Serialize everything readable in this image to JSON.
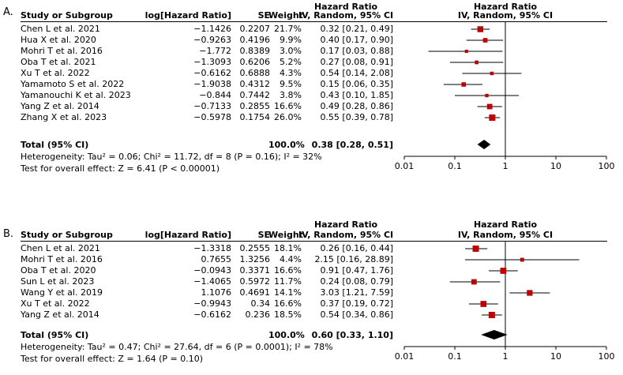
{
  "chart_data": [
    {
      "type": "forest",
      "panel_label": "A.",
      "headers": {
        "study": "Study or Subgroup",
        "loghr": "log[Hazard Ratio]",
        "se": "SE",
        "weight": "Weight",
        "hr_top": "Hazard Ratio",
        "hr_bottom": "IV, Random, 95% CI",
        "plot_top": "Hazard Ratio",
        "plot_bottom": "IV, Random, 95% CI"
      },
      "studies": [
        {
          "name": "Chen L et al. 2021",
          "loghr": "−1.1426",
          "se": "0.2207",
          "weight": "21.7%",
          "ci": "0.32 [0.21, 0.49]",
          "hr": 0.32,
          "lo": 0.21,
          "hi": 0.49,
          "w": 21.7
        },
        {
          "name": "Hua X et al. 2020",
          "loghr": "−0.9263",
          "se": "0.4196",
          "weight": "9.9%",
          "ci": "0.40 [0.17, 0.90]",
          "hr": 0.4,
          "lo": 0.17,
          "hi": 0.9,
          "w": 9.9
        },
        {
          "name": "Mohri T et al. 2016",
          "loghr": "−1.772",
          "se": "0.8389",
          "weight": "3.0%",
          "ci": "0.17 [0.03, 0.88]",
          "hr": 0.17,
          "lo": 0.03,
          "hi": 0.88,
          "w": 3.0
        },
        {
          "name": "Oba T et al. 2021",
          "loghr": "−1.3093",
          "se": "0.6206",
          "weight": "5.2%",
          "ci": "0.27 [0.08, 0.91]",
          "hr": 0.27,
          "lo": 0.08,
          "hi": 0.91,
          "w": 5.2
        },
        {
          "name": "Xu T et al. 2022",
          "loghr": "−0.6162",
          "se": "0.6888",
          "weight": "4.3%",
          "ci": "0.54 [0.14, 2.08]",
          "hr": 0.54,
          "lo": 0.14,
          "hi": 2.08,
          "w": 4.3
        },
        {
          "name": "Yamamoto S et al. 2022",
          "loghr": "−1.9038",
          "se": "0.4312",
          "weight": "9.5%",
          "ci": "0.15 [0.06, 0.35]",
          "hr": 0.15,
          "lo": 0.06,
          "hi": 0.35,
          "w": 9.5
        },
        {
          "name": "Yamanouchi K et al. 2023",
          "loghr": "−0.844",
          "se": "0.7442",
          "weight": "3.8%",
          "ci": "0.43 [0.10, 1.85]",
          "hr": 0.43,
          "lo": 0.1,
          "hi": 1.85,
          "w": 3.8
        },
        {
          "name": "Yang Z et al. 2014",
          "loghr": "−0.7133",
          "se": "0.2855",
          "weight": "16.6%",
          "ci": "0.49 [0.28, 0.86]",
          "hr": 0.49,
          "lo": 0.28,
          "hi": 0.86,
          "w": 16.6
        },
        {
          "name": "Zhang X et al. 2023",
          "loghr": "−0.5978",
          "se": "0.1754",
          "weight": "26.0%",
          "ci": "0.55 [0.39, 0.78]",
          "hr": 0.55,
          "lo": 0.39,
          "hi": 0.78,
          "w": 26.0
        }
      ],
      "total": {
        "label": "Total (95% CI)",
        "weight": "100.0%",
        "ci": "0.38 [0.28, 0.51]",
        "hr": 0.38,
        "lo": 0.28,
        "hi": 0.51
      },
      "heterogeneity": "Heterogeneity: Tau² = 0.06; Chi² = 11.72, df = 8 (P = 0.16); I² = 32%",
      "overall_effect": "Test for overall effect: Z = 6.41 (P < 0.00001)",
      "x_scale": "log",
      "xlim": [
        0.01,
        100
      ],
      "ticks": [
        0.01,
        0.1,
        1,
        10,
        100
      ],
      "tick_labels": [
        "0.01",
        "0.1",
        "1",
        "10",
        "100"
      ],
      "marker_color": "#c00000"
    },
    {
      "type": "forest",
      "panel_label": "B.",
      "headers": {
        "study": "Study or Subgroup",
        "loghr": "log[Hazard Ratio]",
        "se": "SE",
        "weight": "Weight",
        "hr_top": "Hazard Ratio",
        "hr_bottom": "IV, Random, 95% CI",
        "plot_top": "Hazard Ratio",
        "plot_bottom": "IV, Random, 95% CI"
      },
      "studies": [
        {
          "name": "Chen L et al. 2021",
          "loghr": "−1.3318",
          "se": "0.2555",
          "weight": "18.1%",
          "ci": "0.26 [0.16, 0.44]",
          "hr": 0.26,
          "lo": 0.16,
          "hi": 0.44,
          "w": 18.1
        },
        {
          "name": "Mohri T et al. 2016",
          "loghr": "0.7655",
          "se": "1.3256",
          "weight": "4.4%",
          "ci": "2.15 [0.16, 28.89]",
          "hr": 2.15,
          "lo": 0.16,
          "hi": 28.89,
          "w": 4.4
        },
        {
          "name": "Oba T et al. 2020",
          "loghr": "−0.0943",
          "se": "0.3371",
          "weight": "16.6%",
          "ci": "0.91 [0.47, 1.76]",
          "hr": 0.91,
          "lo": 0.47,
          "hi": 1.76,
          "w": 16.6
        },
        {
          "name": "Sun L et al. 2023",
          "loghr": "−1.4065",
          "se": "0.5972",
          "weight": "11.7%",
          "ci": "0.24 [0.08, 0.79]",
          "hr": 0.24,
          "lo": 0.08,
          "hi": 0.79,
          "w": 11.7
        },
        {
          "name": "Wang Y et al. 2019",
          "loghr": "1.1076",
          "se": "0.4691",
          "weight": "14.1%",
          "ci": "3.03 [1.21, 7.59]",
          "hr": 3.03,
          "lo": 1.21,
          "hi": 7.59,
          "w": 14.1
        },
        {
          "name": "Xu T et al. 2022",
          "loghr": "−0.9943",
          "se": "0.34",
          "weight": "16.6%",
          "ci": "0.37 [0.19, 0.72]",
          "hr": 0.37,
          "lo": 0.19,
          "hi": 0.72,
          "w": 16.6
        },
        {
          "name": "Yang Z et al. 2014",
          "loghr": "−0.6162",
          "se": "0.236",
          "weight": "18.5%",
          "ci": "0.54 [0.34, 0.86]",
          "hr": 0.54,
          "lo": 0.34,
          "hi": 0.86,
          "w": 18.5
        }
      ],
      "total": {
        "label": "Total (95% CI)",
        "weight": "100.0%",
        "ci": "0.60 [0.33, 1.10]",
        "hr": 0.6,
        "lo": 0.33,
        "hi": 1.1
      },
      "heterogeneity": "Heterogeneity: Tau² = 0.47; Chi² = 27.64, df = 6 (P = 0.0001); I² = 78%",
      "overall_effect": "Test for overall effect: Z = 1.64 (P = 0.10)",
      "x_scale": "log",
      "xlim": [
        0.01,
        100
      ],
      "ticks": [
        0.01,
        0.1,
        1,
        10,
        100
      ],
      "tick_labels": [
        "0.01",
        "0.1",
        "1",
        "10",
        "100"
      ],
      "marker_color": "#c00000"
    }
  ]
}
